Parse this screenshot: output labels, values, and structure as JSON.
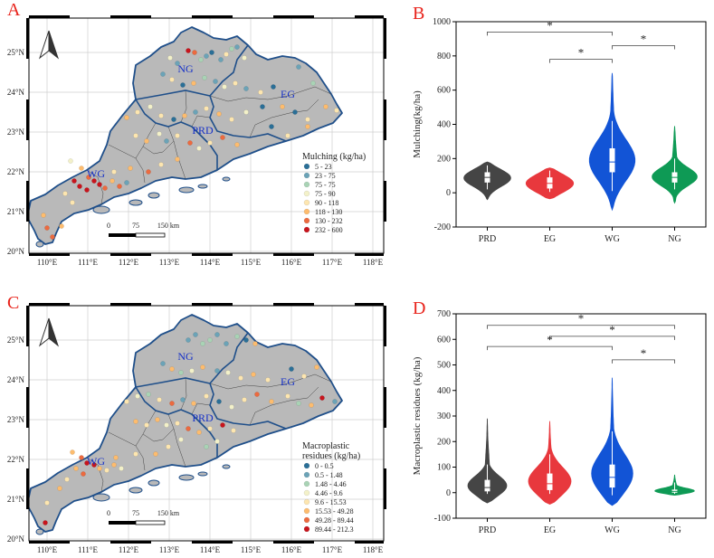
{
  "panels": [
    {
      "letter": "A",
      "type": "map"
    },
    {
      "letter": "B",
      "type": "violin"
    },
    {
      "letter": "C",
      "type": "map"
    },
    {
      "letter": "D",
      "type": "violin"
    }
  ],
  "maps": [
    {
      "id": "A",
      "region_labels": [
        "NG",
        "EG",
        "PRD",
        "WG"
      ],
      "lat_ticks": [
        "25°N",
        "24°N",
        "23°N",
        "22°N",
        "21°N",
        "20°N"
      ],
      "lon_ticks": [
        "110°E",
        "111°E",
        "112°E",
        "113°E",
        "114°E",
        "115°E",
        "116°E",
        "117°E",
        "118°E"
      ],
      "scale_labels": [
        "0",
        "75",
        "150 km"
      ],
      "north_arrow": "north-arrow-icon",
      "legend_title": [
        "Mulching (kg/ha)"
      ],
      "legend": [
        {
          "label": "5 - 23",
          "color": "#2a6f97"
        },
        {
          "label": "23 - 75",
          "color": "#6ba3b7"
        },
        {
          "label": "75 - 75",
          "color": "#a9d3b5"
        },
        {
          "label": "75 - 90",
          "color": "#f3f1c9"
        },
        {
          "label": "90 - 118",
          "color": "#fde6b0"
        },
        {
          "label": "118 - 130",
          "color": "#fdbc6e"
        },
        {
          "label": "130 - 232",
          "color": "#ec6a3f"
        },
        {
          "label": "232 - 600",
          "color": "#c8141c"
        }
      ]
    },
    {
      "id": "C",
      "region_labels": [
        "NG",
        "EG",
        "PRD",
        "WG"
      ],
      "lat_ticks": [
        "25°N",
        "24°N",
        "23°N",
        "22°N",
        "21°N",
        "20°N"
      ],
      "lon_ticks": [
        "110°E",
        "111°E",
        "112°E",
        "113°E",
        "114°E",
        "115°E",
        "116°E",
        "117°E",
        "118°E"
      ],
      "scale_labels": [
        "0",
        "75",
        "150 km"
      ],
      "north_arrow": "north-arrow-icon",
      "legend_title": [
        "Macroplastic",
        "residues (kg/ha)"
      ],
      "legend": [
        {
          "label": "0 - 0.5",
          "color": "#2a6f97"
        },
        {
          "label": "0.5 - 1.48",
          "color": "#6ba3b7"
        },
        {
          "label": "1.48 - 4.46",
          "color": "#a9d3b5"
        },
        {
          "label": "4.46 - 9.6",
          "color": "#f3f1c9"
        },
        {
          "label": "9.6 - 15.53",
          "color": "#fde6b0"
        },
        {
          "label": "15.53 - 49.28",
          "color": "#fdbc6e"
        },
        {
          "label": "49.28 - 89.44",
          "color": "#ec6a3f"
        },
        {
          "label": "89.44 - 212.3",
          "color": "#c8141c"
        }
      ]
    }
  ],
  "chart_data": [
    {
      "id": "B",
      "type": "violin",
      "title": "",
      "xlabel": "",
      "ylabel": "Mulching(kg/ha)",
      "categories": [
        "PRD",
        "EG",
        "WG",
        "NG"
      ],
      "colors": [
        "#454545",
        "#e8383d",
        "#1254d6",
        "#0e9a55"
      ],
      "ylim": [
        -200,
        1000
      ],
      "yticks": [
        -200,
        0,
        200,
        400,
        600,
        800,
        1000
      ],
      "tick_labels": [
        "-200",
        "0",
        "200",
        "400",
        "600",
        "800",
        "1000"
      ],
      "series": [
        {
          "name": "PRD",
          "min": -40,
          "max": 180,
          "median": 90,
          "q1": 60,
          "q3": 120,
          "whisker_low": 20,
          "whisker_high": 160
        },
        {
          "name": "EG",
          "min": -35,
          "max": 145,
          "median": 55,
          "q1": 25,
          "q3": 90,
          "whisker_low": 5,
          "whisker_high": 130
        },
        {
          "name": "WG",
          "min": -100,
          "max": 700,
          "median": 180,
          "q1": 120,
          "q3": 260,
          "whisker_low": 10,
          "whisker_high": 420
        },
        {
          "name": "NG",
          "min": -60,
          "max": 390,
          "median": 90,
          "q1": 60,
          "q3": 120,
          "whisker_low": 20,
          "whisker_high": 200
        }
      ],
      "significance": [
        {
          "from": "PRD",
          "to": "WG",
          "label": "*",
          "y": 940
        },
        {
          "from": "EG",
          "to": "WG",
          "label": "*",
          "y": 780
        },
        {
          "from": "WG",
          "to": "NG",
          "label": "*",
          "y": 860
        }
      ]
    },
    {
      "id": "D",
      "type": "violin",
      "title": "",
      "xlabel": "",
      "ylabel": "Macroplastic residues (kg/ha)",
      "categories": [
        "PRD",
        "EG",
        "WG",
        "NG"
      ],
      "colors": [
        "#454545",
        "#e8383d",
        "#1254d6",
        "#0e9a55"
      ],
      "ylim": [
        -100,
        700
      ],
      "yticks": [
        -100,
        0,
        100,
        200,
        300,
        400,
        500,
        600,
        700
      ],
      "tick_labels": [
        "-100",
        "0",
        "100",
        "200",
        "300",
        "400",
        "500",
        "600",
        "700"
      ],
      "series": [
        {
          "name": "PRD",
          "min": -40,
          "max": 290,
          "median": 20,
          "q1": 5,
          "q3": 50,
          "whisker_low": -5,
          "whisker_high": 110
        },
        {
          "name": "EG",
          "min": -45,
          "max": 280,
          "median": 35,
          "q1": 10,
          "q3": 75,
          "whisker_low": -5,
          "whisker_high": 150
        },
        {
          "name": "WG",
          "min": -50,
          "max": 450,
          "median": 60,
          "q1": 20,
          "q3": 110,
          "whisker_low": -10,
          "whisker_high": 240
        },
        {
          "name": "NG",
          "min": -10,
          "max": 70,
          "median": 5,
          "q1": 0,
          "q3": 12,
          "whisker_low": -5,
          "whisker_high": 40
        }
      ],
      "significance": [
        {
          "from": "PRD",
          "to": "NG",
          "label": "*",
          "y": 655
        },
        {
          "from": "EG",
          "to": "NG",
          "label": "*",
          "y": 612
        },
        {
          "from": "PRD",
          "to": "WG",
          "label": "*",
          "y": 572
        },
        {
          "from": "WG",
          "to": "NG",
          "label": "*",
          "y": 520
        }
      ]
    }
  ]
}
